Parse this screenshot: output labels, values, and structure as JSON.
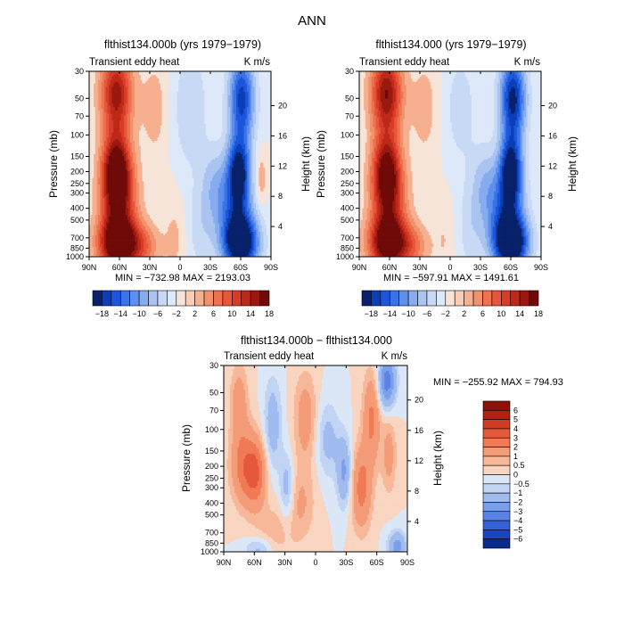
{
  "page": {
    "title": "ANN"
  },
  "contour_scales": {
    "top": {
      "levels": [
        "-18",
        "-14",
        "-10",
        "-6",
        "-2",
        "2",
        "6",
        "10",
        "14",
        "18"
      ],
      "label_indices": [
        0,
        2,
        4,
        6,
        8,
        10,
        12,
        14,
        16,
        18
      ],
      "labels": [
        "−18",
        "−14",
        "−10",
        "−6",
        "−2",
        "2",
        "6",
        "10",
        "14",
        "18"
      ],
      "colors": [
        "#08216b",
        "#0b3fb8",
        "#1b57dc",
        "#3a73e6",
        "#5d90ec",
        "#86abef",
        "#aac4f2",
        "#c8d9f5",
        "#dde8f8",
        "#f7e4d8",
        "#f9cdb4",
        "#f6b08f",
        "#f2926c",
        "#ee7250",
        "#e8563a",
        "#d73c27",
        "#bd2918",
        "#9a180f",
        "#6f0a08"
      ]
    },
    "diff": {
      "labels": [
        "6",
        "5",
        "4",
        "3",
        "2",
        "1",
        "0.5",
        "0",
        "−0.5",
        "−1",
        "−2",
        "−3",
        "−4",
        "−5",
        "−6"
      ],
      "colors": [
        "#8c1209",
        "#b4200f",
        "#d23a24",
        "#e5583a",
        "#ef7a55",
        "#f49b78",
        "#f7b89a",
        "#f8d5c0",
        "#dbe7f7",
        "#c1d4f4",
        "#a0bbef",
        "#7d9fea",
        "#5a83e5",
        "#3562d8",
        "#1a45c0",
        "#0a2a8c"
      ]
    }
  },
  "chart_data": [
    {
      "id": "panel-left",
      "type": "contour",
      "title": "flthist134.000b (yrs 1979−1979)",
      "subtitle_left": "Transient eddy heat",
      "subtitle_right": "K m/s",
      "xlabel": "",
      "ylabel": "Pressure (mb)",
      "ylabel_right": "Height (km)",
      "x_ticks": [
        "90N",
        "60N",
        "30N",
        "0",
        "30S",
        "60S",
        "90S"
      ],
      "x_values": [
        90,
        60,
        30,
        0,
        -30,
        -60,
        -90
      ],
      "y_ticks": [
        "30",
        "50",
        "70",
        "100",
        "150",
        "200",
        "250",
        "300",
        "400",
        "500",
        "700",
        "850",
        "1000"
      ],
      "y_values": [
        30,
        50,
        70,
        100,
        150,
        200,
        250,
        300,
        400,
        500,
        700,
        850,
        1000
      ],
      "height_ticks": [
        "4",
        "8",
        "12",
        "16",
        "20"
      ],
      "height_values": [
        4,
        8,
        12,
        16,
        20
      ],
      "ylim": [
        1000,
        30
      ],
      "xlim": [
        90,
        -90
      ],
      "stats": "MIN = −732.98   MAX = 2193.03",
      "min": -732.98,
      "max": 2193.03,
      "features": [
        {
          "lat": 63,
          "p": 45,
          "amp": 15,
          "slat": 11,
          "sz": 0.55
        },
        {
          "lat": 63,
          "p": 200,
          "amp": 20,
          "slat": 10,
          "sz": 0.5
        },
        {
          "lat": 62,
          "p": 780,
          "amp": 20,
          "slat": 13,
          "sz": 0.35
        },
        {
          "lat": 60,
          "p": 400,
          "amp": 9,
          "slat": 13,
          "sz": 0.55
        },
        {
          "lat": 38,
          "p": 820,
          "amp": 7,
          "slat": 12,
          "sz": 0.3
        },
        {
          "lat": 25,
          "p": 60,
          "amp": 3,
          "slat": 10,
          "sz": 0.7
        },
        {
          "lat": 5,
          "p": 700,
          "amp": 2.5,
          "slat": 8,
          "sz": 0.6
        },
        {
          "lat": -61,
          "p": 50,
          "amp": -15,
          "slat": 9,
          "sz": 0.6
        },
        {
          "lat": -58,
          "p": 200,
          "amp": -17,
          "slat": 8,
          "sz": 0.45
        },
        {
          "lat": -60,
          "p": 780,
          "amp": -20,
          "slat": 12,
          "sz": 0.35
        },
        {
          "lat": -55,
          "p": 450,
          "amp": -9,
          "slat": 13,
          "sz": 0.5
        },
        {
          "lat": -35,
          "p": 250,
          "amp": -5,
          "slat": 10,
          "sz": 0.5
        },
        {
          "lat": -20,
          "p": 600,
          "amp": -3,
          "slat": 10,
          "sz": 0.6
        },
        {
          "lat": -10,
          "p": 60,
          "amp": -4,
          "slat": 12,
          "sz": 0.8
        },
        {
          "lat": -80,
          "p": 230,
          "amp": 4,
          "slat": 4,
          "sz": 0.35
        }
      ]
    },
    {
      "id": "panel-right",
      "type": "contour",
      "title": "flthist134.000 (yrs 1979−1979)",
      "subtitle_left": "Transient eddy heat",
      "subtitle_right": "K m/s",
      "xlabel": "",
      "ylabel": "Pressure (mb)",
      "ylabel_right": "Height (km)",
      "x_ticks": [
        "90N",
        "60N",
        "30N",
        "0",
        "30S",
        "60S",
        "90S"
      ],
      "x_values": [
        90,
        60,
        30,
        0,
        -30,
        -60,
        -90
      ],
      "y_ticks": [
        "30",
        "50",
        "70",
        "100",
        "150",
        "200",
        "250",
        "300",
        "400",
        "500",
        "700",
        "850",
        "1000"
      ],
      "y_values": [
        30,
        50,
        70,
        100,
        150,
        200,
        250,
        300,
        400,
        500,
        700,
        850,
        1000
      ],
      "height_ticks": [
        "4",
        "8",
        "12",
        "16",
        "20"
      ],
      "height_values": [
        4,
        8,
        12,
        16,
        20
      ],
      "ylim": [
        1000,
        30
      ],
      "xlim": [
        90,
        -90
      ],
      "stats": "MIN = −597.91   MAX = 1491.61",
      "min": -597.91,
      "max": 1491.61,
      "features": [
        {
          "lat": 63,
          "p": 45,
          "amp": 16,
          "slat": 11,
          "sz": 0.55
        },
        {
          "lat": 63,
          "p": 200,
          "amp": 17,
          "slat": 10,
          "sz": 0.5
        },
        {
          "lat": 62,
          "p": 780,
          "amp": 18,
          "slat": 13,
          "sz": 0.35
        },
        {
          "lat": 60,
          "p": 400,
          "amp": 8,
          "slat": 13,
          "sz": 0.55
        },
        {
          "lat": 38,
          "p": 820,
          "amp": 6,
          "slat": 12,
          "sz": 0.3
        },
        {
          "lat": 25,
          "p": 60,
          "amp": 3,
          "slat": 10,
          "sz": 0.7
        },
        {
          "lat": 5,
          "p": 700,
          "amp": 2,
          "slat": 8,
          "sz": 0.6
        },
        {
          "lat": -62,
          "p": 50,
          "amp": -17,
          "slat": 9,
          "sz": 0.6
        },
        {
          "lat": -60,
          "p": 200,
          "amp": -18,
          "slat": 8,
          "sz": 0.45
        },
        {
          "lat": -60,
          "p": 780,
          "amp": -21,
          "slat": 12,
          "sz": 0.35
        },
        {
          "lat": -55,
          "p": 450,
          "amp": -10,
          "slat": 13,
          "sz": 0.5
        },
        {
          "lat": -35,
          "p": 250,
          "amp": -5,
          "slat": 10,
          "sz": 0.5
        },
        {
          "lat": -20,
          "p": 600,
          "amp": -3,
          "slat": 10,
          "sz": 0.6
        },
        {
          "lat": -10,
          "p": 60,
          "amp": -3,
          "slat": 12,
          "sz": 0.8
        }
      ]
    },
    {
      "id": "panel-diff",
      "type": "contour",
      "title": "flthist134.000b − flthist134.000",
      "subtitle_left": "Transient eddy heat",
      "subtitle_right": "K m/s",
      "xlabel": "",
      "ylabel": "Pressure (mb)",
      "ylabel_right": "Height (km)",
      "x_ticks": [
        "90N",
        "60N",
        "30N",
        "0",
        "30S",
        "60S",
        "90S"
      ],
      "x_values": [
        90,
        60,
        30,
        0,
        -30,
        -60,
        -90
      ],
      "y_ticks": [
        "30",
        "50",
        "70",
        "100",
        "150",
        "200",
        "250",
        "300",
        "400",
        "500",
        "700",
        "850",
        "1000"
      ],
      "y_values": [
        30,
        50,
        70,
        100,
        150,
        200,
        250,
        300,
        400,
        500,
        700,
        850,
        1000
      ],
      "height_ticks": [
        "4",
        "8",
        "12",
        "16",
        "20"
      ],
      "height_values": [
        4,
        8,
        12,
        16,
        20
      ],
      "ylim": [
        1000,
        30
      ],
      "xlim": [
        90,
        -90
      ],
      "stats": "MIN = −255.92   MAX = 794.93",
      "min": -255.92,
      "max": 794.93,
      "features": [
        {
          "lat": 70,
          "p": 200,
          "amp": 2.5,
          "slat": 9,
          "sz": 0.5
        },
        {
          "lat": 58,
          "p": 230,
          "amp": 2.5,
          "slat": 7,
          "sz": 0.45
        },
        {
          "lat": 75,
          "p": 60,
          "amp": 1.6,
          "slat": 6,
          "sz": 0.5
        },
        {
          "lat": 42,
          "p": 90,
          "amp": -1.6,
          "slat": 6,
          "sz": 0.6
        },
        {
          "lat": 28,
          "p": 300,
          "amp": -1.6,
          "slat": 5,
          "sz": 0.45
        },
        {
          "lat": 10,
          "p": 80,
          "amp": 1.5,
          "slat": 8,
          "sz": 0.6
        },
        {
          "lat": 15,
          "p": 400,
          "amp": 1.1,
          "slat": 10,
          "sz": 0.5
        },
        {
          "lat": -12,
          "p": 120,
          "amp": -1.3,
          "slat": 8,
          "sz": 0.5
        },
        {
          "lat": -28,
          "p": 220,
          "amp": -2.2,
          "slat": 5,
          "sz": 0.45
        },
        {
          "lat": -45,
          "p": 300,
          "amp": 2.4,
          "slat": 7,
          "sz": 0.55
        },
        {
          "lat": -55,
          "p": 80,
          "amp": 2.2,
          "slat": 6,
          "sz": 0.6
        },
        {
          "lat": -70,
          "p": 40,
          "amp": -3.6,
          "slat": 6,
          "sz": 0.35
        },
        {
          "lat": -72,
          "p": 160,
          "amp": 1.4,
          "slat": 5,
          "sz": 0.5
        },
        {
          "lat": -80,
          "p": 900,
          "amp": -2.5,
          "slat": 6,
          "sz": 0.2
        },
        {
          "lat": 55,
          "p": 950,
          "amp": -1.3,
          "slat": 10,
          "sz": 0.15
        },
        {
          "lat": 40,
          "p": 700,
          "amp": 0.8,
          "slat": 12,
          "sz": 0.4
        }
      ]
    }
  ]
}
